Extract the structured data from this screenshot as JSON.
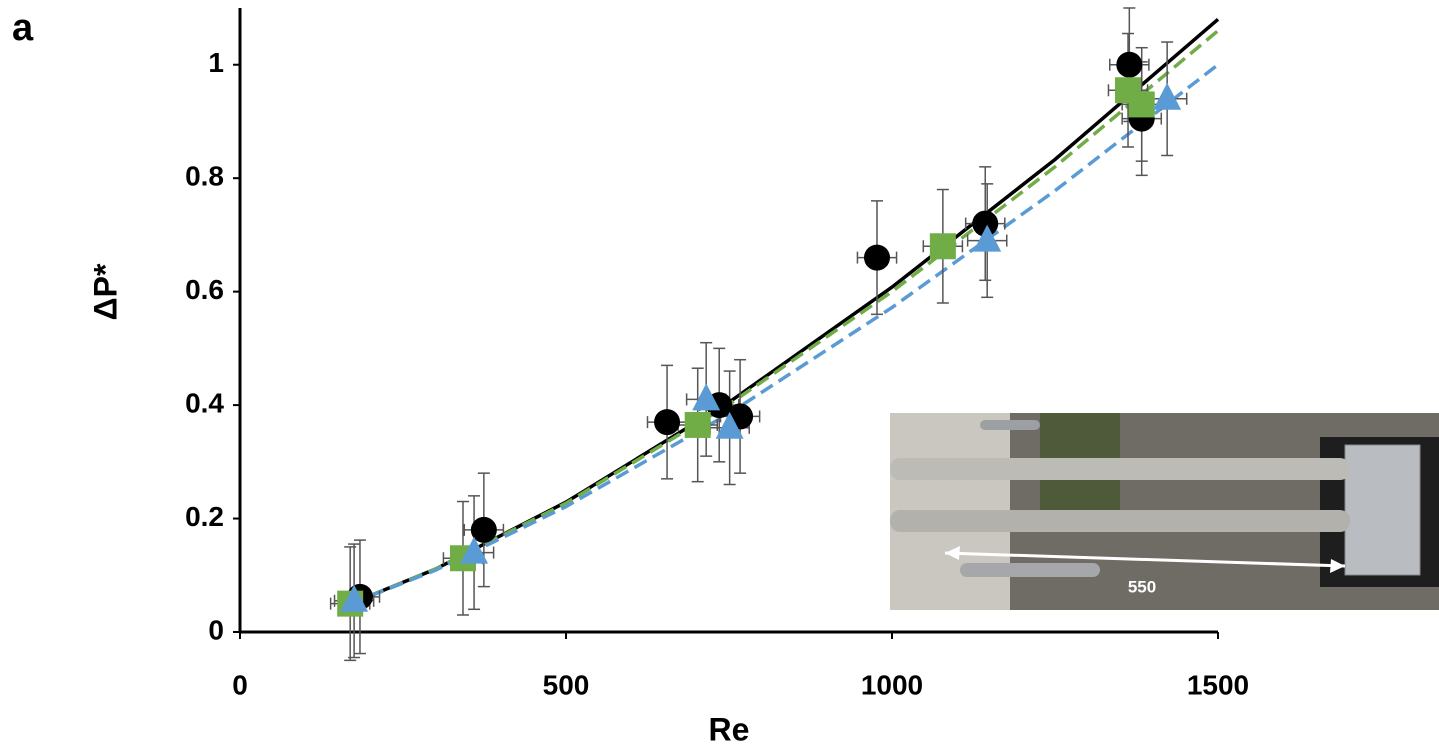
{
  "chart_data": {
    "type": "scatter",
    "panel_label": "a",
    "xlabel": "Re",
    "ylabel": "ΔP*",
    "xlim": [
      0,
      1500
    ],
    "ylim": [
      0,
      1.1
    ],
    "xticks": [
      0,
      500,
      1000,
      1500
    ],
    "yticks": [
      0,
      0.2,
      0.4,
      0.6,
      0.8,
      1
    ],
    "annotation": "550",
    "series": [
      {
        "color": "#000000",
        "marker": "circle",
        "x": [
          184,
          374,
          655,
          735,
          767,
          977,
          1143,
          1364,
          1383
        ],
        "values": [
          0.062,
          0.18,
          0.37,
          0.4,
          0.38,
          0.66,
          0.72,
          1.0,
          0.905
        ],
        "xerr": [
          30,
          30,
          30,
          30,
          30,
          30,
          30,
          30,
          30
        ],
        "yerr": [
          0.1,
          0.1,
          0.1,
          0.1,
          0.1,
          0.1,
          0.1,
          0.1,
          0.1
        ]
      },
      {
        "color": "#70ad47",
        "marker": "square",
        "x": [
          169,
          342,
          702,
          1078,
          1362,
          1383
        ],
        "values": [
          0.05,
          0.13,
          0.365,
          0.68,
          0.955,
          0.93
        ],
        "xerr": [
          30,
          30,
          30,
          30,
          30,
          30
        ],
        "yerr": [
          0.1,
          0.1,
          0.1,
          0.1,
          0.1,
          0.1
        ]
      },
      {
        "color": "#5b9bd5",
        "marker": "triangle",
        "x": [
          175,
          359,
          715,
          751,
          1146,
          1422
        ],
        "values": [
          0.055,
          0.14,
          0.41,
          0.36,
          0.69,
          0.94
        ],
        "xerr": [
          30,
          30,
          30,
          30,
          30,
          30
        ],
        "yerr": [
          0.1,
          0.1,
          0.1,
          0.1,
          0.1,
          0.1
        ]
      }
    ],
    "fits": [
      {
        "color": "#000000",
        "style": "solid",
        "x": [
          170,
          300,
          500,
          750,
          1000,
          1250,
          1500
        ],
        "values": [
          0.05,
          0.111,
          0.229,
          0.405,
          0.608,
          0.833,
          1.08
        ]
      },
      {
        "color": "#70ad47",
        "style": "dashed",
        "x": [
          170,
          300,
          500,
          750,
          1000,
          1250,
          1500
        ],
        "values": [
          0.05,
          0.111,
          0.227,
          0.401,
          0.6,
          0.82,
          1.06
        ]
      },
      {
        "color": "#5b9bd5",
        "style": "dashed",
        "x": [
          170,
          300,
          500,
          750,
          1000,
          1250,
          1500
        ],
        "values": [
          0.05,
          0.109,
          0.221,
          0.385,
          0.572,
          0.778,
          1.0
        ]
      }
    ]
  }
}
